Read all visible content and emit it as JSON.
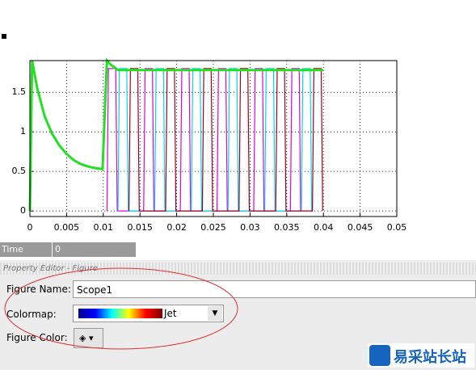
{
  "chart_data": {
    "type": "line",
    "xlim": [
      0,
      0.05
    ],
    "ylim": [
      -0.07,
      1.9
    ],
    "xticks": [
      0,
      0.005,
      0.01,
      0.015,
      0.02,
      0.025,
      0.03,
      0.035,
      0.04,
      0.045,
      0.05
    ],
    "yticks": [
      0,
      0.5,
      1,
      1.5
    ],
    "grid": true,
    "series": [
      {
        "color": "#e000e0",
        "x": [
          0.0105,
          0.0107,
          0.0117,
          0.0119,
          0.0155,
          0.0157,
          0.0167,
          0.0169,
          0.0205,
          0.0207,
          0.0217,
          0.0219,
          0.0255,
          0.0257,
          0.0267,
          0.0269,
          0.0305,
          0.0307,
          0.0317,
          0.0319,
          0.0355,
          0.0357,
          0.0367,
          0.0369
        ],
        "values": [
          0,
          1.8,
          1.8,
          0,
          0,
          1.8,
          1.8,
          0,
          0,
          1.8,
          1.8,
          0,
          0,
          1.8,
          1.8,
          0,
          0,
          1.8,
          1.8,
          0,
          0,
          1.8,
          1.8,
          0
        ]
      },
      {
        "color": "#00d8f0",
        "x": [
          0.012,
          0.0122,
          0.0132,
          0.0134,
          0.017,
          0.0172,
          0.0182,
          0.0184,
          0.022,
          0.0222,
          0.0232,
          0.0234,
          0.027,
          0.0272,
          0.0282,
          0.0284,
          0.032,
          0.0322,
          0.0332,
          0.0334,
          0.037,
          0.0372,
          0.0382,
          0.0384
        ],
        "values": [
          0,
          1.8,
          1.8,
          0,
          0,
          1.8,
          1.8,
          0,
          0,
          1.8,
          1.8,
          0,
          0,
          1.8,
          1.8,
          0,
          0,
          1.8,
          1.8,
          0,
          0,
          1.8,
          1.8,
          0
        ]
      },
      {
        "color": "#a00020",
        "x": [
          0.0135,
          0.0137,
          0.0147,
          0.0149,
          0.0185,
          0.0187,
          0.0197,
          0.0199,
          0.0235,
          0.0237,
          0.0247,
          0.0249,
          0.0285,
          0.0287,
          0.0297,
          0.0299,
          0.0335,
          0.0337,
          0.0347,
          0.0349,
          0.0385,
          0.0387,
          0.0397,
          0.0399
        ],
        "values": [
          0,
          1.8,
          1.8,
          0,
          0,
          1.8,
          1.8,
          0,
          0,
          1.8,
          1.8,
          0,
          0,
          1.8,
          1.8,
          0,
          0,
          1.8,
          1.8,
          0,
          0,
          1.8,
          1.8,
          0
        ]
      },
      {
        "color": "#22e022",
        "x": [
          0,
          0.0003,
          0.001,
          0.002,
          0.003,
          0.004,
          0.005,
          0.006,
          0.007,
          0.008,
          0.009,
          0.0099,
          0.0101,
          0.0105,
          0.011,
          0.012,
          0.02,
          0.03,
          0.04
        ],
        "values": [
          0,
          1.9,
          1.55,
          1.2,
          0.98,
          0.83,
          0.72,
          0.64,
          0.59,
          0.56,
          0.54,
          0.53,
          1.0,
          1.9,
          1.85,
          1.78,
          1.78,
          1.78,
          1.78
        ]
      }
    ]
  },
  "time_offset": {
    "label": "Time offset:",
    "value": "0"
  },
  "property_editor": {
    "title": "Property Editor - Figure",
    "figure_name": {
      "label": "Figure Name:",
      "value": "Scope1"
    },
    "colormap": {
      "label": "Colormap:",
      "value": "Jet"
    },
    "figure_color": {
      "label": "Figure Color:"
    }
  },
  "watermark": "易采站长站"
}
